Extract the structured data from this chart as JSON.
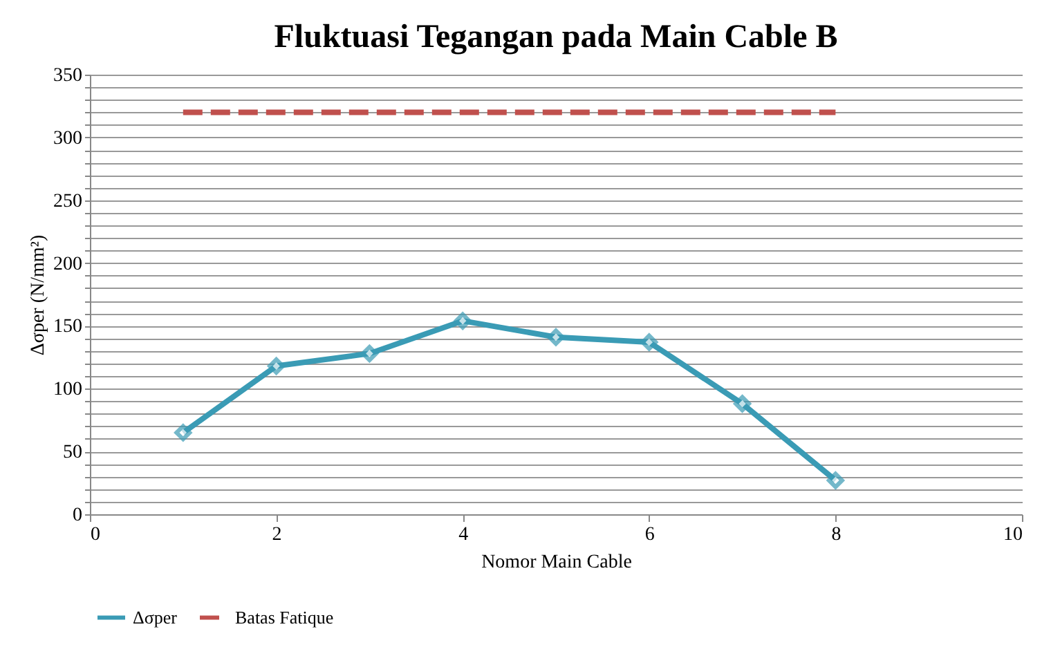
{
  "chart_data": {
    "type": "line",
    "title": "Fluktuasi Tegangan pada Main Cable B",
    "xlabel": "Nomor Main Cable",
    "ylabel": "Δσper (N/mm²)",
    "xlim": [
      0,
      10
    ],
    "xticks": [
      0,
      2,
      4,
      6,
      8,
      10
    ],
    "ylim": [
      0,
      350
    ],
    "yticks": [
      0,
      {
        "value": 10,
        "label": null
      },
      {
        "value": 20,
        "label": null
      },
      {
        "value": 30,
        "label": null
      },
      {
        "value": 40,
        "label": null
      },
      50,
      {
        "value": 60,
        "label": null
      },
      {
        "value": 70,
        "label": null
      },
      {
        "value": 80,
        "label": null
      },
      {
        "value": 90,
        "label": null
      },
      100,
      {
        "value": 110,
        "label": null
      },
      {
        "value": 120,
        "label": null
      },
      {
        "value": 130,
        "label": null
      },
      {
        "value": 140,
        "label": null
      },
      150,
      {
        "value": 160,
        "label": null
      },
      {
        "value": 170,
        "label": null
      },
      {
        "value": 180,
        "label": null
      },
      {
        "value": 190,
        "label": null
      },
      200,
      {
        "value": 210,
        "label": null
      },
      {
        "value": 220,
        "label": null
      },
      {
        "value": 230,
        "label": null
      },
      {
        "value": 240,
        "label": null
      },
      250,
      {
        "value": 260,
        "label": null
      },
      {
        "value": 270,
        "label": null
      },
      {
        "value": 280,
        "label": null
      },
      {
        "value": 290,
        "label": null
      },
      300,
      {
        "value": 310,
        "label": null
      },
      {
        "value": 320,
        "label": null
      },
      {
        "value": 330,
        "label": null
      },
      {
        "value": 340,
        "label": null
      },
      350
    ],
    "grid": "y",
    "legend": "bottom",
    "series": [
      {
        "name": "Δσper",
        "color": "#3a9bb5",
        "marker": "diamond",
        "line_style": "solid",
        "x": [
          1,
          2,
          3,
          4,
          5,
          6,
          7,
          8
        ],
        "values": [
          65,
          118,
          128,
          154,
          141,
          137,
          88,
          27
        ]
      },
      {
        "name": "Batas Fatique",
        "color": "#c0504d",
        "marker": "none",
        "line_style": "dashed",
        "x": [
          1,
          8
        ],
        "values": [
          320,
          320
        ]
      }
    ]
  }
}
